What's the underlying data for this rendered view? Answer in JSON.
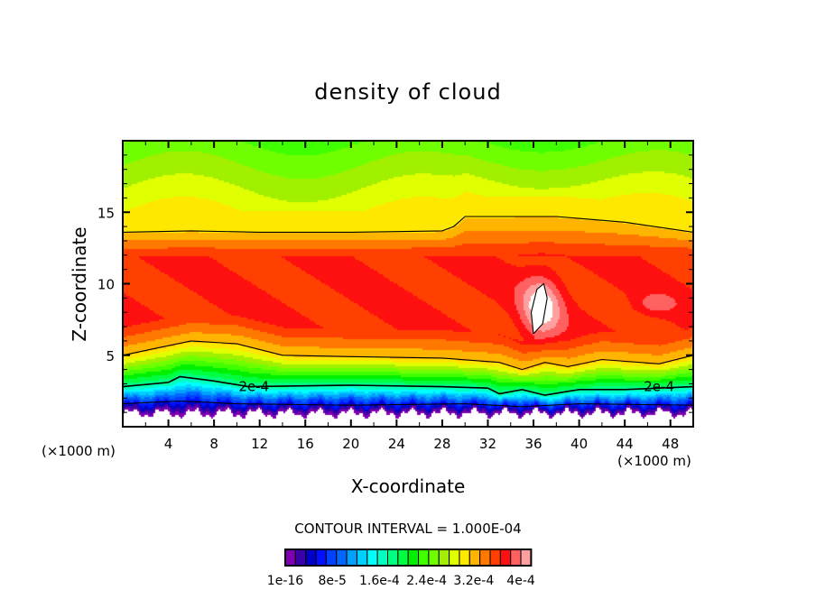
{
  "chart_data": {
    "type": "heatmap",
    "title": "density of cloud",
    "xlabel": "X-coordinate",
    "ylabel": "Z-coordinate",
    "x_unit_left": "(×1000 m)",
    "x_unit_right": "(×1000 m)",
    "xlim": [
      0,
      50
    ],
    "ylim": [
      0,
      20
    ],
    "xticks": [
      4,
      8,
      12,
      16,
      20,
      24,
      28,
      32,
      36,
      40,
      44,
      48
    ],
    "yticks": [
      5,
      10,
      15
    ],
    "contour_interval_text": "CONTOUR INTERVAL = 1.000E-04",
    "colorbar": {
      "colors": [
        "#8000b0",
        "#3c00a8",
        "#0000c8",
        "#0010ff",
        "#0040ff",
        "#0068ff",
        "#00a0ff",
        "#00d0ff",
        "#00ffff",
        "#00ffc0",
        "#00ff80",
        "#00ff40",
        "#00f000",
        "#40ff00",
        "#70ff00",
        "#a0f000",
        "#e0ff00",
        "#ffe800",
        "#ffb400",
        "#ff7800",
        "#ff4000",
        "#ff1010",
        "#ff6060",
        "#ffa0a0"
      ],
      "labels": [
        "1e-16",
        "8e-5",
        "1.6e-4",
        "2.4e-4",
        "3.2e-4",
        "4e-4"
      ]
    },
    "contour_labels": [
      {
        "text": "2e-4",
        "x": 11.5,
        "z": 2.8
      },
      {
        "text": "2e-4",
        "x": 47,
        "z": 2.8
      }
    ],
    "contours": [
      [
        [
          0,
          13.6
        ],
        [
          6,
          13.7
        ],
        [
          12,
          13.6
        ],
        [
          20,
          13.6
        ],
        [
          28,
          13.7
        ],
        [
          29,
          14
        ],
        [
          30,
          14.7
        ],
        [
          38,
          14.7
        ],
        [
          44,
          14.3
        ],
        [
          50,
          13.6
        ]
      ],
      [
        [
          0,
          5
        ],
        [
          3,
          5.5
        ],
        [
          6,
          6
        ],
        [
          10,
          5.8
        ],
        [
          14,
          5
        ],
        [
          20,
          4.9
        ],
        [
          28,
          4.8
        ],
        [
          33,
          4.5
        ],
        [
          35,
          4
        ],
        [
          37,
          4.5
        ],
        [
          39,
          4.2
        ],
        [
          42,
          4.7
        ],
        [
          47,
          4.4
        ],
        [
          50,
          5
        ]
      ],
      [
        [
          0,
          2.8
        ],
        [
          4,
          3.1
        ],
        [
          5,
          3.5
        ],
        [
          8,
          3.2
        ],
        [
          11,
          2.8
        ],
        [
          20,
          2.9
        ],
        [
          28,
          2.8
        ],
        [
          32,
          2.7
        ],
        [
          33,
          2.3
        ],
        [
          35,
          2.6
        ],
        [
          37,
          2.2
        ],
        [
          40,
          2.6
        ],
        [
          44,
          2.6
        ],
        [
          50,
          2.8
        ]
      ],
      [
        [
          0,
          1.6
        ],
        [
          5,
          1.8
        ],
        [
          10,
          1.6
        ],
        [
          20,
          1.5
        ],
        [
          30,
          1.6
        ],
        [
          35,
          1.4
        ],
        [
          40,
          1.6
        ],
        [
          50,
          1.5
        ]
      ],
      [
        [
          36,
          6.5
        ],
        [
          35.8,
          8
        ],
        [
          36.3,
          9.6
        ],
        [
          36.9,
          10
        ],
        [
          37.2,
          9
        ],
        [
          36.8,
          7.2
        ],
        [
          36,
          6.5
        ]
      ]
    ]
  }
}
